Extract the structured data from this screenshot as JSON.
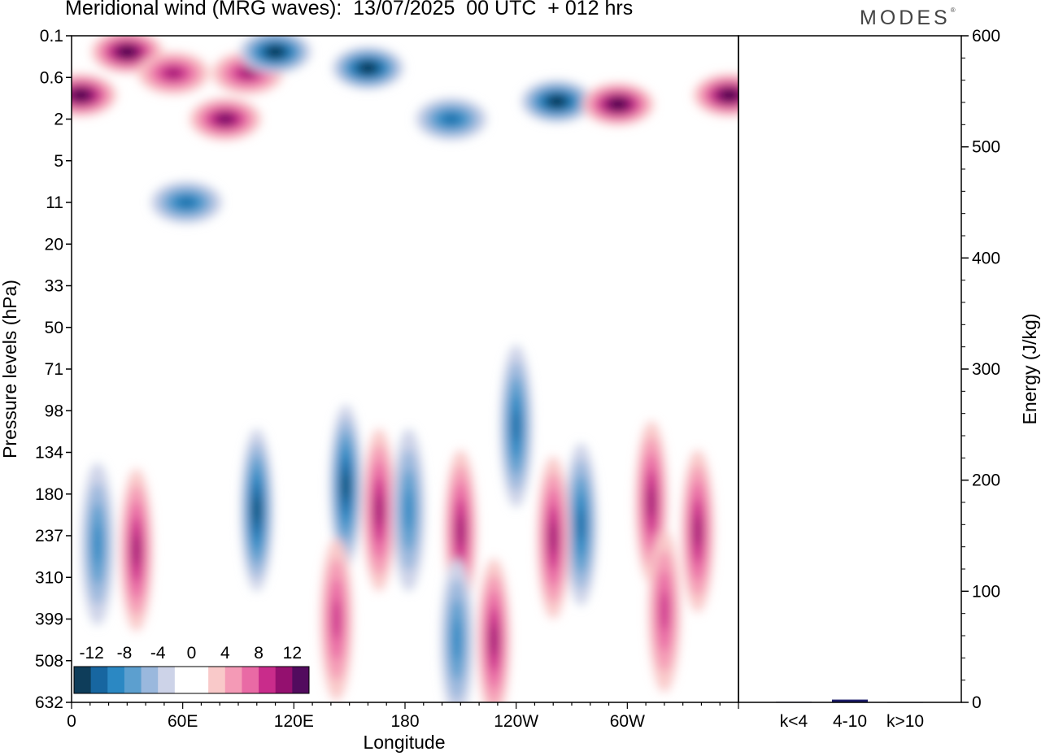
{
  "header": {
    "title": "Meridional wind (MRG waves):  13/07/2025  00 UTC  + 012 hrs",
    "brand": "MODES",
    "brand_mark": "®"
  },
  "chart_data": [
    {
      "type": "heatmap",
      "title": "Meridional wind (MRG waves):  13/07/2025  00 UTC  + 012 hrs",
      "xlabel": "Longitude",
      "ylabel": "Pressure levels (hPa)",
      "x_ticks": [
        "0",
        "60E",
        "120E",
        "180",
        "120W",
        "60W"
      ],
      "x_tick_values": [
        0,
        60,
        120,
        180,
        240,
        300
      ],
      "xlim": [
        0,
        360
      ],
      "y_ticks": [
        "0.1",
        "0.6",
        "2",
        "5",
        "11",
        "20",
        "33",
        "50",
        "71",
        "98",
        "134",
        "180",
        "237",
        "310",
        "399",
        "508",
        "632"
      ],
      "colorbar": {
        "labels": [
          "-12",
          "-8",
          "-4",
          "0",
          "4",
          "8",
          "12"
        ],
        "levels": [
          -14,
          -12,
          -10,
          -8,
          -6,
          -4,
          -2,
          2,
          4,
          6,
          8,
          10,
          12,
          14
        ],
        "colors": [
          "#0e3d5a",
          "#1766a0",
          "#2b88c3",
          "#5c9fcf",
          "#9ab8dd",
          "#cdd3e8",
          "#ffffff",
          "#ffffff",
          "#f9c9c9",
          "#f49ab6",
          "#e96aa5",
          "#c92c8b",
          "#94106f",
          "#520b5e"
        ]
      },
      "features": [
        {
          "lon": 30,
          "level": 0.2,
          "value": 14
        },
        {
          "lon": 55,
          "level": 0.5,
          "value": 9
        },
        {
          "lon": 5,
          "level": 1.0,
          "value": 13
        },
        {
          "lon": 83,
          "level": 2.0,
          "value": 11
        },
        {
          "lon": 95,
          "level": 0.5,
          "value": 9
        },
        {
          "lon": 160,
          "level": 0.4,
          "value": -15
        },
        {
          "lon": 110,
          "level": 0.2,
          "value": -14
        },
        {
          "lon": 205,
          "level": 2.0,
          "value": -9
        },
        {
          "lon": 262,
          "level": 1.2,
          "value": -14
        },
        {
          "lon": 295,
          "level": 1.3,
          "value": 15
        },
        {
          "lon": 355,
          "level": 1.0,
          "value": 13
        },
        {
          "lon": 62,
          "level": 11,
          "value": -9
        },
        {
          "lon": 100,
          "level": 200,
          "value": -11
        },
        {
          "lon": 148,
          "level": 170,
          "value": -12
        },
        {
          "lon": 166,
          "level": 200,
          "value": 9
        },
        {
          "lon": 210,
          "level": 230,
          "value": 10
        },
        {
          "lon": 182,
          "level": 200,
          "value": -8
        },
        {
          "lon": 240,
          "level": 110,
          "value": -9
        },
        {
          "lon": 275,
          "level": 220,
          "value": -10
        },
        {
          "lon": 313,
          "level": 190,
          "value": 9
        },
        {
          "lon": 338,
          "level": 230,
          "value": 9
        },
        {
          "lon": 35,
          "level": 260,
          "value": 10
        },
        {
          "lon": 14,
          "level": 250,
          "value": -7
        },
        {
          "lon": 143,
          "level": 400,
          "value": 7
        },
        {
          "lon": 208,
          "level": 450,
          "value": -7
        },
        {
          "lon": 228,
          "level": 450,
          "value": 10
        },
        {
          "lon": 320,
          "level": 380,
          "value": 7
        },
        {
          "lon": 260,
          "level": 240,
          "value": 10
        }
      ]
    },
    {
      "type": "bar",
      "ylabel": "Energy (J/kg)",
      "ylim": [
        0,
        600
      ],
      "y_ticks": [
        "0",
        "100",
        "200",
        "300",
        "400",
        "500",
        "600"
      ],
      "categories": [
        "k<4",
        "4-10",
        "k>10"
      ],
      "values": [
        0.5,
        2.5,
        0.3
      ],
      "bar_color": "#1d1d6b"
    }
  ]
}
